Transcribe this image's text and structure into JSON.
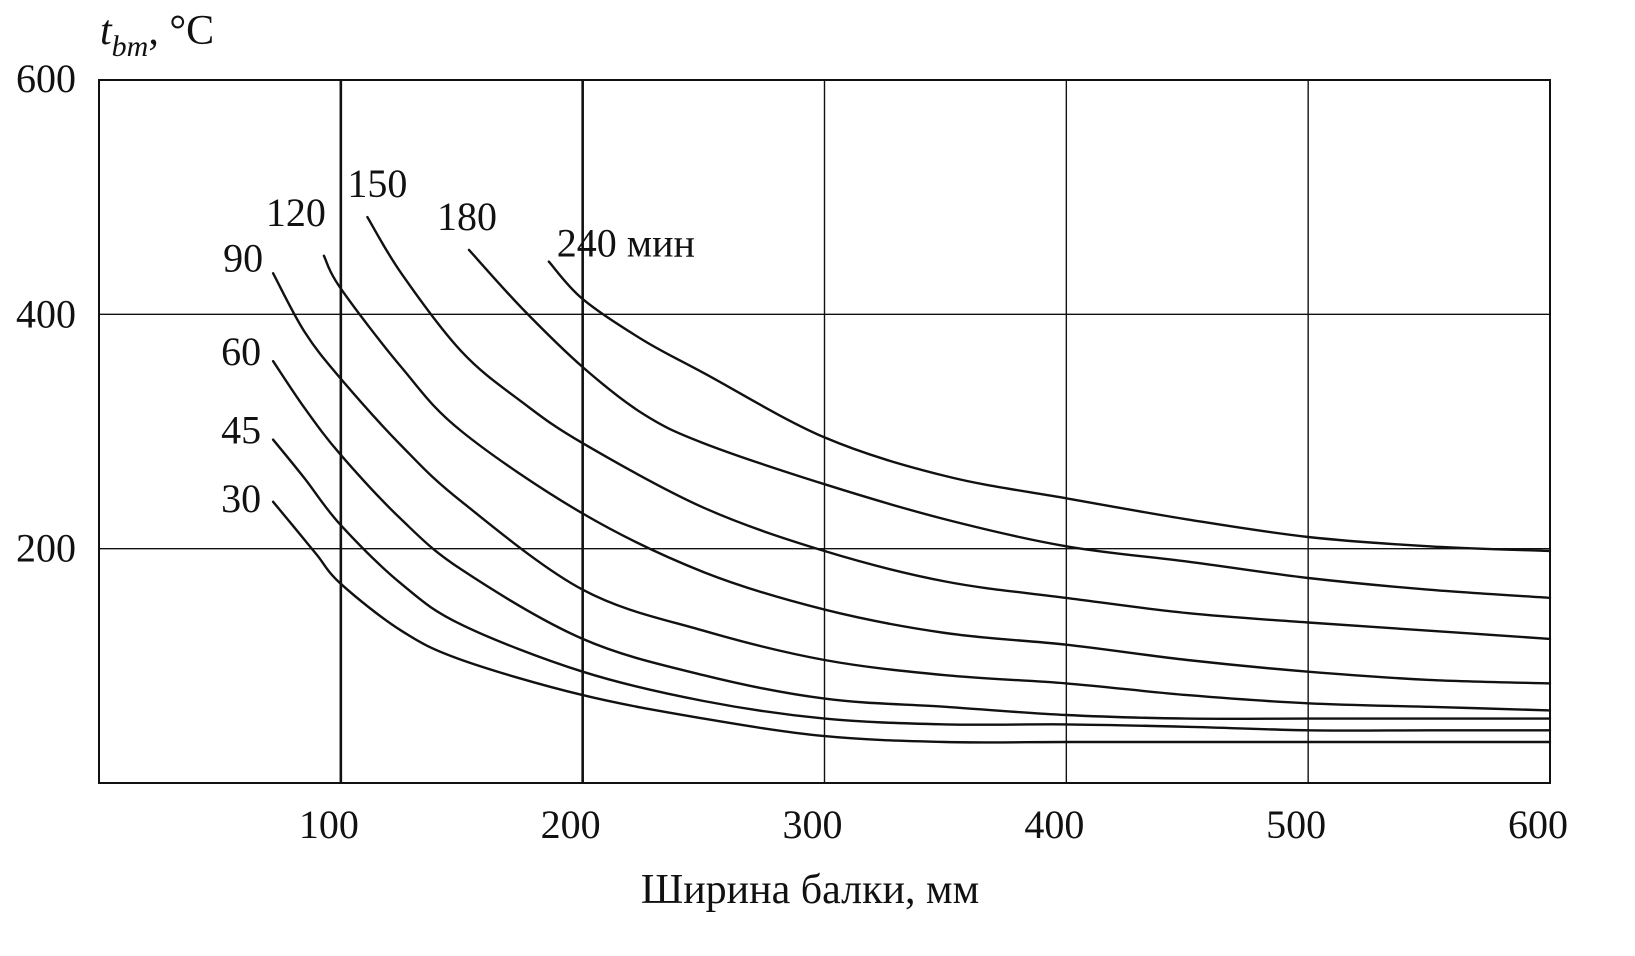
{
  "chart_data": {
    "type": "line",
    "y_title": {
      "symbol": "t",
      "subscript": "bm",
      "unit": ", °C"
    },
    "xlabel": "Ширина балки, мм",
    "xlim": [
      0,
      600
    ],
    "ylim": [
      0,
      600
    ],
    "x_ticks": [
      100,
      200,
      300,
      400,
      500,
      600
    ],
    "x_tick_labels": [
      "100",
      "200",
      "300",
      "400",
      "500",
      "600"
    ],
    "y_ticks": [
      200,
      400,
      600
    ],
    "y_tick_labels": [
      "200",
      "400",
      "600"
    ],
    "grid": true,
    "series": [
      {
        "name": "30",
        "label": "30",
        "x": [
          72,
          80,
          90,
          100,
          125,
          150,
          200,
          250,
          300,
          350,
          400,
          450,
          500,
          550,
          600
        ],
        "y": [
          240,
          220,
          195,
          170,
          130,
          105,
          75,
          55,
          40,
          35,
          35,
          35,
          35,
          35,
          35
        ]
      },
      {
        "name": "45",
        "label": "45",
        "x": [
          72,
          85,
          100,
          125,
          150,
          200,
          250,
          300,
          350,
          400,
          450,
          500,
          550,
          600
        ],
        "y": [
          293,
          260,
          220,
          170,
          135,
          95,
          70,
          55,
          50,
          50,
          48,
          45,
          45,
          45
        ]
      },
      {
        "name": "60",
        "label": "60",
        "x": [
          72,
          85,
          100,
          125,
          150,
          200,
          250,
          300,
          350,
          400,
          450,
          500,
          550,
          600
        ],
        "y": [
          360,
          320,
          280,
          225,
          182,
          123,
          92,
          72,
          65,
          58,
          55,
          55,
          55,
          55
        ]
      },
      {
        "name": "90",
        "label": "90",
        "x": [
          72,
          85,
          100,
          125,
          150,
          200,
          250,
          300,
          350,
          400,
          450,
          500,
          550,
          600
        ],
        "y": [
          435,
          385,
          345,
          288,
          240,
          165,
          130,
          105,
          92,
          85,
          75,
          68,
          65,
          62
        ]
      },
      {
        "name": "120",
        "label": "120",
        "x": [
          93,
          100,
          125,
          150,
          200,
          250,
          300,
          350,
          400,
          450,
          500,
          550,
          600
        ],
        "y": [
          450,
          422,
          355,
          300,
          230,
          180,
          148,
          128,
          118,
          105,
          95,
          88,
          85
        ]
      },
      {
        "name": "150",
        "label": "150",
        "x": [
          111,
          125,
          150,
          175,
          200,
          250,
          300,
          350,
          400,
          450,
          500,
          550,
          600
        ],
        "y": [
          483,
          435,
          368,
          325,
          290,
          235,
          198,
          172,
          158,
          145,
          137,
          130,
          123
        ]
      },
      {
        "name": "180",
        "label": "180",
        "x": [
          153,
          175,
          200,
          225,
          250,
          300,
          350,
          400,
          450,
          500,
          550,
          600
        ],
        "y": [
          455,
          405,
          355,
          315,
          290,
          255,
          225,
          202,
          189,
          175,
          165,
          158
        ]
      },
      {
        "name": "240",
        "label": "240 мин",
        "x": [
          186,
          200,
          225,
          250,
          300,
          350,
          400,
          450,
          500,
          550,
          600
        ],
        "y": [
          445,
          413,
          378,
          350,
          295,
          262,
          243,
          225,
          210,
          202,
          198
        ]
      }
    ]
  }
}
